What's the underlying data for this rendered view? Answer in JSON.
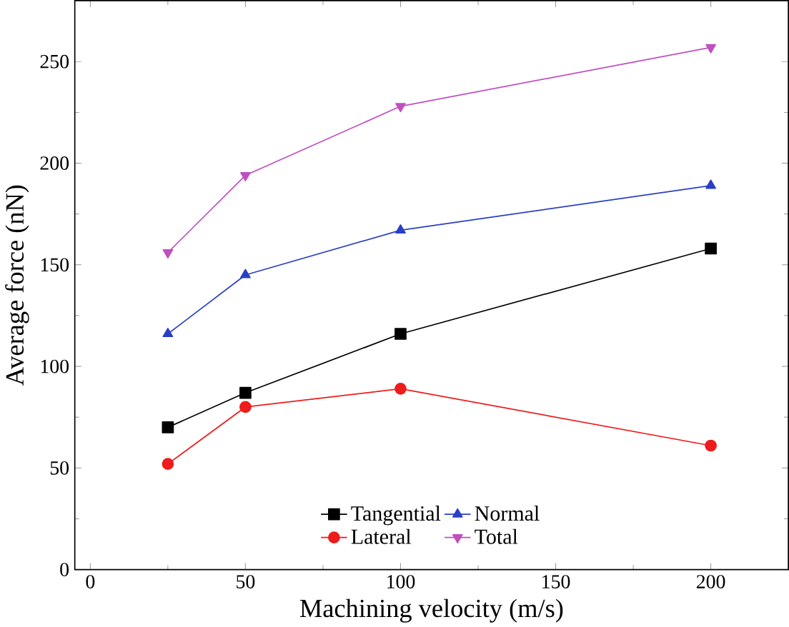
{
  "chart_data": {
    "type": "line",
    "xlabel": "Machining velocity (m/s)",
    "ylabel": "Average force (nN)",
    "x": [
      25,
      50,
      100,
      200
    ],
    "series": [
      {
        "name": "Tangential",
        "color": "#000000",
        "marker": "square",
        "values": [
          70,
          87,
          116,
          158
        ]
      },
      {
        "name": "Normal",
        "color": "#2b3fc4",
        "marker": "triangle",
        "values": [
          116,
          145,
          167,
          189
        ]
      },
      {
        "name": "Lateral",
        "color": "#ee1c1c",
        "marker": "circle",
        "values": [
          52,
          80,
          89,
          61
        ]
      },
      {
        "name": "Total",
        "color": "#c04fc0",
        "marker": "triangle down",
        "values": [
          156,
          194,
          228,
          257
        ]
      }
    ],
    "xlim": [
      -5,
      225
    ],
    "ylim": [
      0,
      280
    ],
    "xticks": [
      0,
      50,
      100,
      150,
      200
    ],
    "yticks": [
      0,
      50,
      100,
      150,
      200,
      250
    ],
    "grid": false,
    "legend": "bottom",
    "line_style": "solid"
  }
}
